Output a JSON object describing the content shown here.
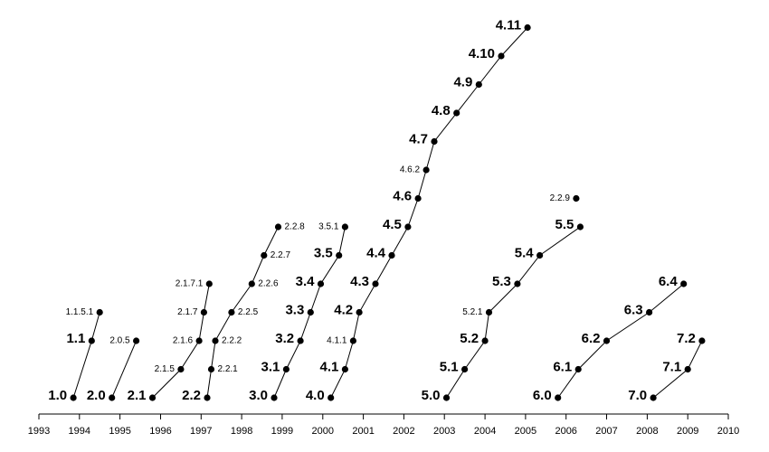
{
  "chart_data": {
    "type": "scatter",
    "title": "",
    "xlabel": "",
    "ylabel": "",
    "xlim": [
      1993,
      2010
    ],
    "x_ticks": [
      "1993",
      "1994",
      "1995",
      "1996",
      "1997",
      "1998",
      "1999",
      "2000",
      "2001",
      "2002",
      "2003",
      "2004",
      "2005",
      "2006",
      "2007",
      "2008",
      "2009",
      "2010"
    ],
    "y_axis_shown": false,
    "grid": false,
    "legend": "none",
    "colors": {
      "points": "#000000",
      "lines": "#000000"
    },
    "series": [
      {
        "points": [
          {
            "label": "1.0",
            "x": 1993.85,
            "y": 0
          },
          {
            "label": "1.1",
            "x": 1994.3,
            "y": 2
          },
          {
            "label": "1.1.5.1",
            "x": 1994.5,
            "y": 3,
            "minor": true
          }
        ]
      },
      {
        "points": [
          {
            "label": "2.0",
            "x": 1994.8,
            "y": 0
          },
          {
            "label": "2.0.5",
            "x": 1995.4,
            "y": 2,
            "minor": true
          }
        ]
      },
      {
        "points": [
          {
            "label": "2.1",
            "x": 1995.8,
            "y": 0
          },
          {
            "label": "2.1.5",
            "x": 1996.5,
            "y": 1,
            "minor": true
          },
          {
            "label": "2.1.6",
            "x": 1996.95,
            "y": 2,
            "minor": true
          },
          {
            "label": "2.1.7",
            "x": 1997.07,
            "y": 3,
            "minor": true
          },
          {
            "label": "2.1.7.1",
            "x": 1997.2,
            "y": 4,
            "minor": true
          }
        ]
      },
      {
        "points": [
          {
            "label": "2.2",
            "x": 1997.15,
            "y": 0
          },
          {
            "label": "2.2.1",
            "x": 1997.25,
            "y": 1,
            "minor": true
          },
          {
            "label": "2.2.2",
            "x": 1997.35,
            "y": 2,
            "minor": true
          },
          {
            "label": "2.2.5",
            "x": 1997.75,
            "y": 3,
            "minor": true
          },
          {
            "label": "2.2.6",
            "x": 1998.25,
            "y": 4,
            "minor": true
          },
          {
            "label": "2.2.7",
            "x": 1998.55,
            "y": 5,
            "minor": true
          },
          {
            "label": "2.2.8",
            "x": 1998.9,
            "y": 6,
            "minor": true
          }
        ]
      },
      {
        "points": [
          {
            "label": "3.0",
            "x": 1998.8,
            "y": 0
          },
          {
            "label": "3.1",
            "x": 1999.1,
            "y": 1
          },
          {
            "label": "3.2",
            "x": 1999.45,
            "y": 2
          },
          {
            "label": "3.3",
            "x": 1999.7,
            "y": 3
          },
          {
            "label": "3.4",
            "x": 1999.95,
            "y": 4
          },
          {
            "label": "3.5",
            "x": 2000.4,
            "y": 5
          },
          {
            "label": "3.5.1",
            "x": 2000.55,
            "y": 6,
            "minor": true
          }
        ]
      },
      {
        "points": [
          {
            "label": "4.0",
            "x": 2000.2,
            "y": 0
          },
          {
            "label": "4.1",
            "x": 2000.55,
            "y": 1
          },
          {
            "label": "4.1.1",
            "x": 2000.75,
            "y": 2,
            "minor": true
          },
          {
            "label": "4.2",
            "x": 2000.9,
            "y": 3
          },
          {
            "label": "4.3",
            "x": 2001.3,
            "y": 4
          },
          {
            "label": "4.4",
            "x": 2001.7,
            "y": 5
          },
          {
            "label": "4.5",
            "x": 2002.1,
            "y": 6
          },
          {
            "label": "4.6",
            "x": 2002.35,
            "y": 7
          },
          {
            "label": "4.6.2",
            "x": 2002.55,
            "y": 8,
            "minor": true
          },
          {
            "label": "4.7",
            "x": 2002.75,
            "y": 9
          },
          {
            "label": "4.8",
            "x": 2003.3,
            "y": 10
          },
          {
            "label": "4.9",
            "x": 2003.85,
            "y": 11
          },
          {
            "label": "4.10",
            "x": 2004.4,
            "y": 12
          },
          {
            "label": "4.11",
            "x": 2005.05,
            "y": 13
          }
        ]
      },
      {
        "points": [
          {
            "label": "5.0",
            "x": 2003.05,
            "y": 0
          },
          {
            "label": "5.1",
            "x": 2003.5,
            "y": 1
          },
          {
            "label": "5.2",
            "x": 2004.0,
            "y": 2
          },
          {
            "label": "5.2.1",
            "x": 2004.1,
            "y": 3,
            "minor": true
          },
          {
            "label": "5.3",
            "x": 2004.8,
            "y": 4
          },
          {
            "label": "5.4",
            "x": 2005.35,
            "y": 5
          },
          {
            "label": "5.5",
            "x": 2006.35,
            "y": 6
          }
        ]
      },
      {
        "points": [
          {
            "label": "2.2.9",
            "x": 2006.25,
            "y": 7,
            "minor": true
          }
        ]
      },
      {
        "points": [
          {
            "label": "6.0",
            "x": 2005.8,
            "y": 0
          },
          {
            "label": "6.1",
            "x": 2006.3,
            "y": 1
          },
          {
            "label": "6.2",
            "x": 2007.0,
            "y": 2
          },
          {
            "label": "6.3",
            "x": 2008.05,
            "y": 3
          },
          {
            "label": "6.4",
            "x": 2008.9,
            "y": 4
          }
        ]
      },
      {
        "points": [
          {
            "label": "7.0",
            "x": 2008.15,
            "y": 0
          },
          {
            "label": "7.1",
            "x": 2009.0,
            "y": 1
          },
          {
            "label": "7.2",
            "x": 2009.35,
            "y": 2
          }
        ]
      }
    ]
  }
}
